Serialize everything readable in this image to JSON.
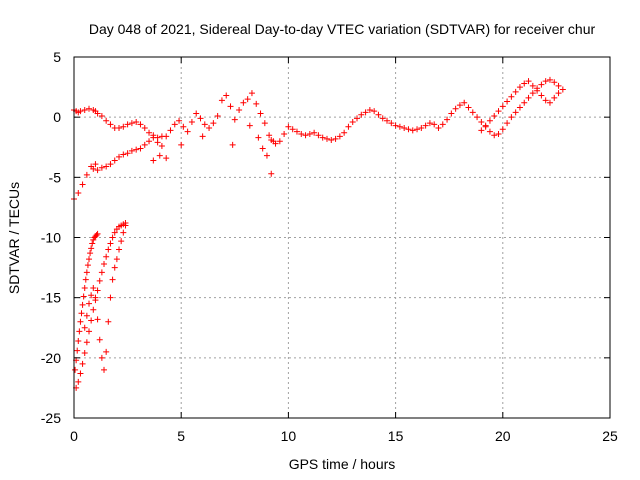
{
  "chart_data": {
    "type": "scatter",
    "title": "Day 048 of 2021, Sidereal Day-to-day VTEC variation (SDTVAR) for receiver chur",
    "xlabel": "GPS time / hours",
    "ylabel": "SDTVAR / TECUs",
    "xlim": [
      0,
      25
    ],
    "ylim": [
      -25,
      5
    ],
    "xticks": [
      0,
      5,
      10,
      15,
      20,
      25
    ],
    "yticks": [
      -25,
      -20,
      -15,
      -10,
      -5,
      0,
      5
    ],
    "xtick_labels": [
      "0",
      "5",
      "10",
      "15",
      "20",
      "25"
    ],
    "ytick_labels": [
      "-25",
      "-20",
      "-15",
      "-10",
      "-5",
      "0",
      "5"
    ],
    "grid": true,
    "marker": "+",
    "colors": {
      "series": "#ff0000",
      "grid": "#a0a0a0",
      "axis": "#000000"
    },
    "series": [
      {
        "name": "SDTVAR",
        "x": [
          0.0,
          0.1,
          0.2,
          0.3,
          0.5,
          0.7,
          0.9,
          1.0,
          1.1,
          1.3,
          1.5,
          1.7,
          1.9,
          2.1,
          2.3,
          2.5,
          2.7,
          2.9,
          3.1,
          3.3,
          3.5,
          3.7,
          3.9,
          4.1,
          0.0,
          0.2,
          0.4,
          0.6,
          0.8,
          1.0,
          0.9,
          1.1,
          1.3,
          1.5,
          1.7,
          1.9,
          2.1,
          2.3,
          2.5,
          2.7,
          2.9,
          3.1,
          3.3,
          3.5,
          3.7,
          3.9,
          4.1,
          4.3,
          4.5,
          4.7,
          4.9,
          5.1,
          5.3,
          5.5,
          5.7,
          5.9,
          6.1,
          6.3,
          6.5,
          6.7,
          6.9,
          7.1,
          7.3,
          7.5,
          7.7,
          7.9,
          8.1,
          8.3,
          8.5,
          8.7,
          8.9,
          9.1,
          9.2,
          9.4,
          9.6,
          9.8,
          10.0,
          10.2,
          10.4,
          10.6,
          10.8,
          11.0,
          11.2,
          11.4,
          11.6,
          11.8,
          12.0,
          12.2,
          12.4,
          12.6,
          12.8,
          13.0,
          13.2,
          13.4,
          13.6,
          13.8,
          14.0,
          14.2,
          14.4,
          14.6,
          14.8,
          15.0,
          15.2,
          15.4,
          15.6,
          15.8,
          16.0,
          16.2,
          16.4,
          16.6,
          16.8,
          17.0,
          17.2,
          17.4,
          17.6,
          17.8,
          18.0,
          18.2,
          18.4,
          18.6,
          18.8,
          19.0,
          19.2,
          19.4,
          19.6,
          19.8,
          20.0,
          20.2,
          20.4,
          20.6,
          20.8,
          21.0,
          21.2,
          21.4,
          21.6,
          21.8,
          22.0,
          22.2,
          22.4,
          22.6,
          22.8,
          19.0,
          19.2,
          19.4,
          19.6,
          19.8,
          20.0,
          20.2,
          20.4,
          20.6,
          20.8,
          21.0,
          21.2,
          21.4,
          21.6,
          21.8,
          22.0,
          22.2,
          22.4,
          22.6,
          0.05,
          0.1,
          0.15,
          0.2,
          0.25,
          0.3,
          0.35,
          0.4,
          0.45,
          0.5,
          0.55,
          0.6,
          0.65,
          0.7,
          0.75,
          0.8,
          0.85,
          0.9,
          0.95,
          1.0,
          1.05,
          1.1,
          0.1,
          0.2,
          0.3,
          0.4,
          0.5,
          0.6,
          0.7,
          0.8,
          0.9,
          1.0,
          1.1,
          1.2,
          1.3,
          1.4,
          1.5,
          1.6,
          1.7,
          1.8,
          1.9,
          2.0,
          2.1,
          2.2,
          2.3,
          2.4,
          0.5,
          0.6,
          0.7,
          0.8,
          0.9,
          1.0,
          1.1,
          1.2,
          1.3,
          1.4,
          1.5,
          1.6,
          1.7,
          1.8,
          1.9,
          2.0,
          2.1,
          2.2,
          2.3,
          2.4,
          9.2,
          9.0,
          8.8,
          8.2,
          3.7,
          4.0,
          4.3,
          5.0,
          6.0,
          7.4,
          8.6,
          9.3
        ],
        "y": [
          0.6,
          0.5,
          0.4,
          0.5,
          0.6,
          0.7,
          0.6,
          0.5,
          0.3,
          0.1,
          -0.3,
          -0.6,
          -0.9,
          -0.9,
          -0.8,
          -0.6,
          -0.5,
          -0.4,
          -0.6,
          -0.9,
          -1.3,
          -1.5,
          -1.7,
          -1.6,
          -6.8,
          -6.3,
          -5.6,
          -4.8,
          -4.1,
          -3.9,
          -4.3,
          -4.4,
          -4.2,
          -4.1,
          -3.9,
          -3.6,
          -3.3,
          -3.1,
          -3.0,
          -2.8,
          -2.7,
          -2.6,
          -2.3,
          -2.0,
          -1.7,
          -2.1,
          -2.4,
          -1.6,
          -1.1,
          -0.6,
          -0.3,
          -0.8,
          -1.2,
          -0.4,
          0.3,
          -0.1,
          -0.6,
          -0.9,
          -0.5,
          0.1,
          1.4,
          1.8,
          0.9,
          -0.2,
          0.6,
          1.2,
          1.5,
          2.0,
          1.1,
          0.3,
          -0.5,
          -1.5,
          -1.9,
          -2.2,
          -2.0,
          -1.4,
          -0.8,
          -1.0,
          -1.2,
          -1.4,
          -1.5,
          -1.4,
          -1.3,
          -1.5,
          -1.7,
          -1.8,
          -1.9,
          -1.8,
          -1.6,
          -1.3,
          -0.8,
          -0.4,
          -0.1,
          0.2,
          0.4,
          0.6,
          0.5,
          0.2,
          -0.1,
          -0.3,
          -0.5,
          -0.7,
          -0.8,
          -0.9,
          -1.0,
          -1.1,
          -1.0,
          -0.9,
          -0.7,
          -0.5,
          -0.6,
          -0.9,
          -0.6,
          -0.2,
          0.3,
          0.7,
          1.0,
          1.2,
          0.8,
          0.4,
          0.0,
          -0.4,
          -0.8,
          -1.2,
          -1.5,
          -1.4,
          -1.0,
          -0.5,
          0.0,
          0.4,
          0.8,
          1.2,
          1.6,
          2.0,
          2.4,
          2.7,
          3.0,
          3.1,
          2.9,
          2.6,
          2.3,
          -1.1,
          -0.7,
          -0.3,
          0.1,
          0.5,
          0.9,
          1.3,
          1.7,
          2.1,
          2.5,
          2.8,
          3.0,
          2.6,
          2.2,
          1.8,
          1.4,
          1.2,
          1.6,
          2.0,
          -21.0,
          -20.2,
          -19.4,
          -18.6,
          -17.8,
          -17.0,
          -16.3,
          -15.6,
          -14.9,
          -14.2,
          -13.5,
          -12.9,
          -12.3,
          -11.8,
          -11.3,
          -10.9,
          -10.5,
          -10.2,
          -10.0,
          -9.9,
          -9.8,
          -9.7,
          -22.5,
          -22.0,
          -21.3,
          -20.5,
          -19.6,
          -18.7,
          -17.8,
          -16.9,
          -16.0,
          -15.2,
          -14.4,
          -13.6,
          -12.9,
          -12.2,
          -11.6,
          -11.0,
          -10.5,
          -10.0,
          -9.6,
          -9.3,
          -9.1,
          -9.0,
          -8.9,
          -8.8,
          -17.5,
          -16.5,
          -15.5,
          -14.8,
          -14.2,
          -15.0,
          -16.8,
          -18.5,
          -20.0,
          -21.0,
          -19.5,
          -17.0,
          -15.0,
          -13.5,
          -12.5,
          -11.8,
          -11.0,
          -10.3,
          -9.6,
          -9.0,
          -4.7,
          -3.2,
          -2.6,
          -0.7,
          -3.6,
          -3.2,
          -3.4,
          -2.3,
          -1.6,
          -2.3,
          -1.7,
          -2.0
        ]
      }
    ]
  }
}
